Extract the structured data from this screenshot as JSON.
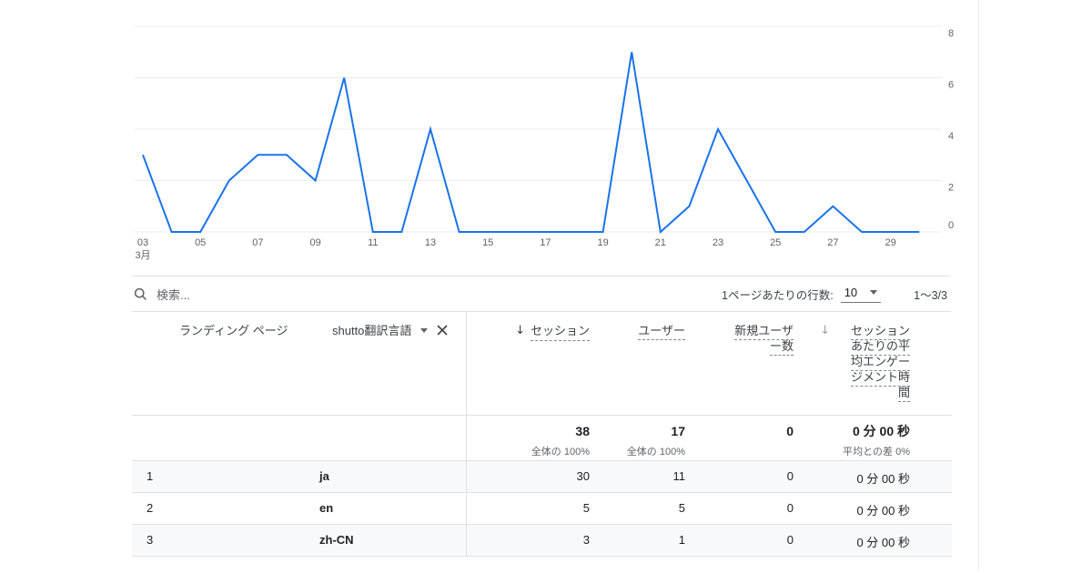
{
  "chart_data": {
    "type": "line",
    "title": "",
    "x": [
      3,
      4,
      5,
      6,
      7,
      8,
      9,
      10,
      11,
      12,
      13,
      14,
      15,
      16,
      17,
      18,
      19,
      20,
      21,
      22,
      23,
      24,
      25,
      26,
      27,
      28,
      29,
      30
    ],
    "values": [
      3,
      0,
      0,
      2,
      3,
      3,
      2,
      6,
      0,
      0,
      4,
      0,
      0,
      0,
      0,
      0,
      0,
      7,
      0,
      1,
      4,
      2,
      0,
      0,
      1,
      0,
      0,
      0
    ],
    "x_tick_labels": [
      "03",
      "05",
      "07",
      "09",
      "11",
      "13",
      "15",
      "17",
      "19",
      "21",
      "23",
      "25",
      "27",
      "29"
    ],
    "x_month_label": "3月",
    "y_ticks": [
      0,
      2,
      4,
      6,
      8
    ],
    "ylim": [
      0,
      8
    ],
    "grid": true,
    "y_axis_position": "right",
    "line_color": "#1a73e8"
  },
  "toolbar": {
    "search_placeholder": "検索...",
    "rows_per_page_label": "1ページあたりの行数:",
    "rows_per_page_value": "10",
    "pagination": "1～3/3"
  },
  "table": {
    "headers": {
      "landing_page": "ランディング ページ",
      "language": "shutto翻訳言語",
      "sessions": "セッション",
      "users": "ユーザー",
      "new_users": "新規ユーザー数",
      "engagement": "セッションあたりの平均エンゲージメント時間"
    },
    "sort_icon": "↓",
    "summary": {
      "sessions": "38",
      "sessions_sub": "全体の 100%",
      "users": "17",
      "users_sub": "全体の 100%",
      "new_users": "0",
      "engagement": "0 分 00 秒",
      "engagement_sub": "平均との差 0%"
    },
    "rows": [
      {
        "index": "1",
        "language": "ja",
        "sessions": "30",
        "users": "11",
        "new_users": "0",
        "engagement": "0 分 00 秒"
      },
      {
        "index": "2",
        "language": "en",
        "sessions": "5",
        "users": "5",
        "new_users": "0",
        "engagement": "0 分 00 秒"
      },
      {
        "index": "3",
        "language": "zh-CN",
        "sessions": "3",
        "users": "1",
        "new_users": "0",
        "engagement": "0 分 00 秒"
      }
    ]
  },
  "colors": {
    "accent_blue": "#1a73e8",
    "grid_line": "#ececec",
    "row_stripe": "#f8f9fa",
    "border": "#e0e0e0"
  }
}
